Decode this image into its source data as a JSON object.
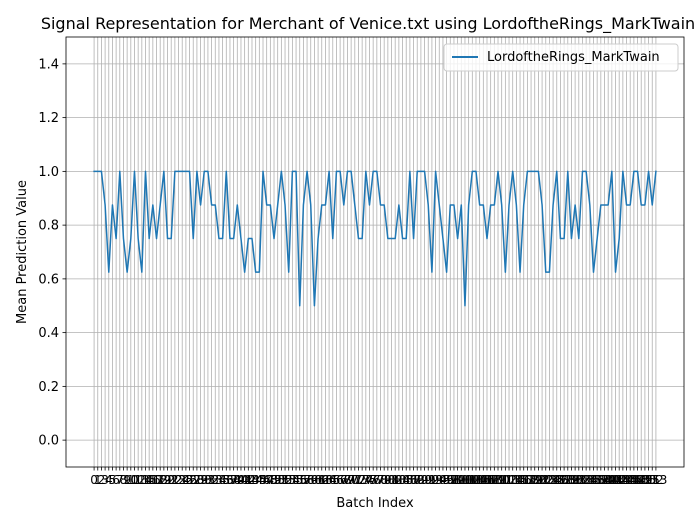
{
  "chart_data": {
    "type": "line",
    "title": "Signal Representation for Merchant of Venice.txt using LordoftheRings_MarkTwain",
    "xlabel": "Batch Index",
    "ylabel": "Mean Prediction Value",
    "xlim": [
      -7.65,
      160.65
    ],
    "ylim": [
      -0.1,
      1.5
    ],
    "yticks": [
      0.0,
      0.2,
      0.4,
      0.6,
      0.8,
      1.0,
      1.2,
      1.4
    ],
    "ytick_labels": [
      "0.0",
      "0.2",
      "0.4",
      "0.6",
      "0.8",
      "1.0",
      "1.2",
      "1.4"
    ],
    "grid": true,
    "legend_position": "top-right",
    "colors": {
      "line": "#1f77b4",
      "grid": "#b0b0b0",
      "axes": "#000000"
    },
    "x": [
      0,
      1,
      2,
      3,
      4,
      5,
      6,
      7,
      8,
      9,
      10,
      11,
      12,
      13,
      14,
      15,
      16,
      17,
      18,
      19,
      20,
      21,
      22,
      23,
      24,
      25,
      26,
      27,
      28,
      29,
      30,
      31,
      32,
      33,
      34,
      35,
      36,
      37,
      38,
      39,
      40,
      41,
      42,
      43,
      44,
      45,
      46,
      47,
      48,
      49,
      50,
      51,
      52,
      53,
      54,
      55,
      56,
      57,
      58,
      59,
      60,
      61,
      62,
      63,
      64,
      65,
      66,
      67,
      68,
      69,
      70,
      71,
      72,
      73,
      74,
      75,
      76,
      77,
      78,
      79,
      80,
      81,
      82,
      83,
      84,
      85,
      86,
      87,
      88,
      89,
      90,
      91,
      92,
      93,
      94,
      95,
      96,
      97,
      98,
      99,
      100,
      101,
      102,
      103,
      104,
      105,
      106,
      107,
      108,
      109,
      110,
      111,
      112,
      113,
      114,
      115,
      116,
      117,
      118,
      119,
      120,
      121,
      122,
      123,
      124,
      125,
      126,
      127,
      128,
      129,
      130,
      131,
      132,
      133,
      134,
      135,
      136,
      137,
      138,
      139,
      140,
      141,
      142,
      143,
      144,
      145,
      146,
      147,
      148,
      149,
      150,
      151,
      152,
      153
    ],
    "xtick_labels": [
      "0",
      "1",
      "2",
      "3",
      "4",
      "5",
      "6",
      "7",
      "8",
      "9",
      "10",
      "11",
      "12",
      "13",
      "14",
      "15",
      "16",
      "17",
      "18",
      "19",
      "20",
      "21",
      "22",
      "23",
      "24",
      "25",
      "26",
      "27",
      "28",
      "29",
      "30",
      "31",
      "32",
      "33",
      "34",
      "35",
      "36",
      "37",
      "38",
      "39",
      "40",
      "41",
      "42",
      "43",
      "44",
      "45",
      "46",
      "47",
      "48",
      "49",
      "50",
      "51",
      "52",
      "53",
      "54",
      "55",
      "56",
      "57",
      "58",
      "59",
      "60",
      "61",
      "62",
      "63",
      "64",
      "65",
      "66",
      "67",
      "68",
      "69",
      "70",
      "71",
      "72",
      "73",
      "74",
      "75",
      "76",
      "77",
      "78",
      "79",
      "80",
      "81",
      "82",
      "83",
      "84",
      "85",
      "86",
      "87",
      "88",
      "89",
      "90",
      "91",
      "92",
      "93",
      "94",
      "95",
      "96",
      "97",
      "98",
      "99",
      "100",
      "101",
      "102",
      "103",
      "104",
      "105",
      "106",
      "107",
      "108",
      "109",
      "110",
      "111",
      "112",
      "113",
      "114",
      "115",
      "116",
      "117",
      "118",
      "119",
      "120",
      "121",
      "122",
      "123",
      "124",
      "125",
      "126",
      "127",
      "128",
      "129",
      "130",
      "131",
      "132",
      "133",
      "134",
      "135",
      "136",
      "137",
      "138",
      "139",
      "140",
      "141",
      "142",
      "143",
      "144",
      "145",
      "146",
      "147",
      "148",
      "149",
      "150",
      "151",
      "152",
      "153"
    ],
    "series": [
      {
        "name": "LordoftheRings_MarkTwain",
        "values": [
          1.0,
          1.0,
          1.0,
          0.875,
          0.625,
          0.875,
          0.75,
          1.0,
          0.75,
          0.625,
          0.75,
          1.0,
          0.75,
          0.625,
          1.0,
          0.75,
          0.875,
          0.75,
          0.875,
          1.0,
          0.75,
          0.75,
          1.0,
          1.0,
          1.0,
          1.0,
          1.0,
          0.75,
          1.0,
          0.875,
          1.0,
          1.0,
          0.875,
          0.875,
          0.75,
          0.75,
          1.0,
          0.75,
          0.75,
          0.875,
          0.75,
          0.625,
          0.75,
          0.75,
          0.625,
          0.625,
          1.0,
          0.875,
          0.875,
          0.75,
          0.875,
          1.0,
          0.875,
          0.625,
          1.0,
          1.0,
          0.5,
          0.875,
          1.0,
          0.875,
          0.5,
          0.75,
          0.875,
          0.875,
          1.0,
          0.75,
          1.0,
          1.0,
          0.875,
          1.0,
          1.0,
          0.875,
          0.75,
          0.75,
          1.0,
          0.875,
          1.0,
          1.0,
          0.875,
          0.875,
          0.75,
          0.75,
          0.75,
          0.875,
          0.75,
          0.75,
          1.0,
          0.75,
          1.0,
          1.0,
          1.0,
          0.875,
          0.625,
          1.0,
          0.875,
          0.75,
          0.625,
          0.875,
          0.875,
          0.75,
          0.875,
          0.5,
          0.875,
          1.0,
          1.0,
          0.875,
          0.875,
          0.75,
          0.875,
          0.875,
          1.0,
          0.875,
          0.625,
          0.875,
          1.0,
          0.875,
          0.625,
          0.875,
          1.0,
          1.0,
          1.0,
          1.0,
          0.875,
          0.625,
          0.625,
          0.875,
          1.0,
          0.75,
          0.75,
          1.0,
          0.75,
          0.875,
          0.75,
          1.0,
          1.0,
          0.875,
          0.625,
          0.75,
          0.875,
          0.875,
          0.875,
          1.0,
          0.625,
          0.75,
          1.0,
          0.875,
          0.875,
          1.0,
          1.0,
          0.875,
          0.875,
          1.0,
          0.875,
          1.0
        ]
      }
    ]
  }
}
